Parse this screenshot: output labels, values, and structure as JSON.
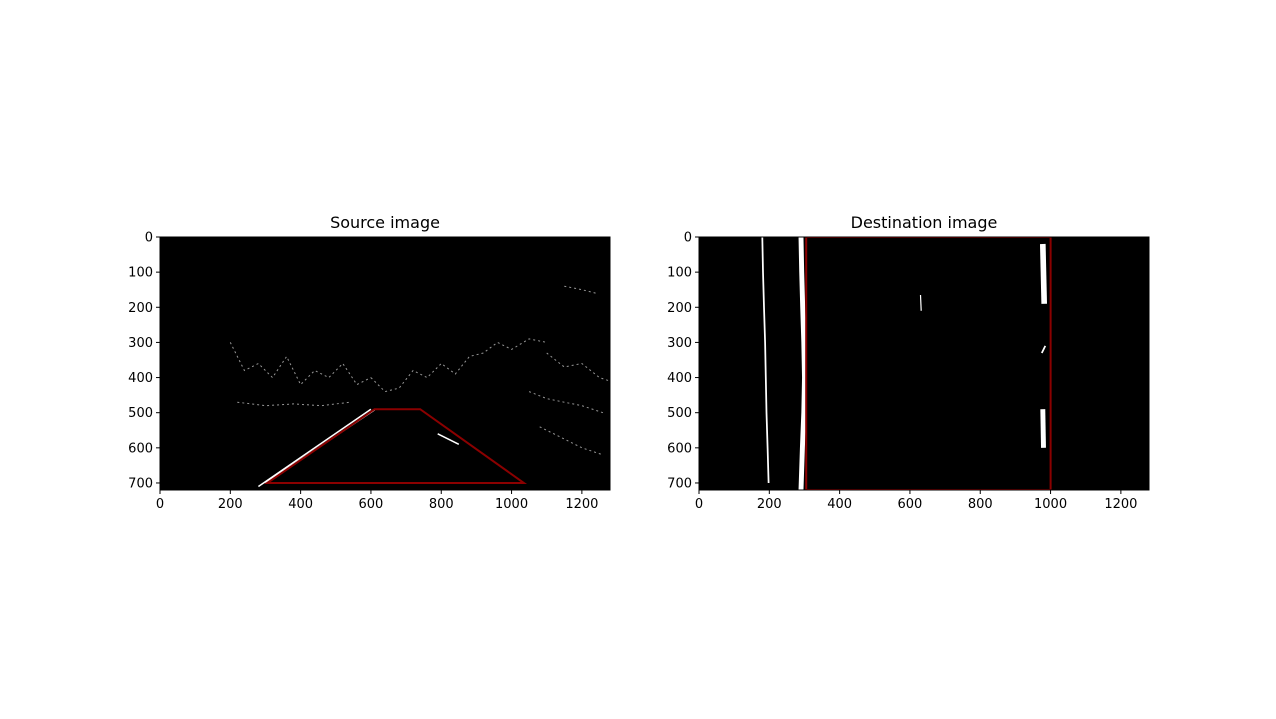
{
  "chart_data": [
    {
      "type": "image",
      "title": "Source image",
      "xlim": [
        0,
        1280
      ],
      "ylim": [
        720,
        0
      ],
      "xticks": [
        0,
        200,
        400,
        600,
        800,
        1000,
        1200
      ],
      "yticks": [
        0,
        100,
        200,
        300,
        400,
        500,
        600,
        700
      ],
      "background": "#000000",
      "overlay_color": "#8b0000",
      "overlay_polygon": [
        [
          305,
          700
        ],
        [
          610,
          490
        ],
        [
          740,
          490
        ],
        [
          1035,
          700
        ]
      ],
      "lane_lines": [
        {
          "x": [
            280,
            600
          ],
          "y": [
            710,
            490
          ]
        },
        {
          "x": [
            300,
            610
          ],
          "y": [
            700,
            492
          ]
        },
        {
          "x": [
            790,
            850
          ],
          "y": [
            560,
            590
          ]
        }
      ],
      "edge_segments": [
        {
          "x": [
            200,
            240,
            280,
            320,
            360,
            400,
            440,
            480,
            520,
            560,
            600
          ],
          "y": [
            300,
            380,
            360,
            400,
            340,
            420,
            380,
            400,
            360,
            420,
            400
          ]
        },
        {
          "x": [
            600,
            640,
            680,
            720,
            760,
            800,
            840,
            880,
            920,
            960,
            1000,
            1050,
            1100
          ],
          "y": [
            400,
            440,
            430,
            380,
            400,
            360,
            390,
            340,
            330,
            300,
            320,
            290,
            300
          ]
        },
        {
          "x": [
            1100,
            1150,
            1200,
            1250,
            1280
          ],
          "y": [
            330,
            370,
            360,
            400,
            410
          ]
        },
        {
          "x": [
            1080,
            1140,
            1200,
            1260
          ],
          "y": [
            540,
            570,
            600,
            620
          ]
        },
        {
          "x": [
            220,
            300,
            380,
            460,
            540
          ],
          "y": [
            470,
            480,
            475,
            480,
            470
          ]
        },
        {
          "x": [
            1150,
            1200,
            1240
          ],
          "y": [
            140,
            150,
            160
          ]
        },
        {
          "x": [
            1050,
            1100,
            1150,
            1200,
            1260
          ],
          "y": [
            440,
            460,
            470,
            480,
            500
          ]
        }
      ]
    },
    {
      "type": "image",
      "title": "Destination image",
      "xlim": [
        0,
        1280
      ],
      "ylim": [
        720,
        0
      ],
      "xticks": [
        0,
        200,
        400,
        600,
        800,
        1000,
        1200
      ],
      "yticks": [
        0,
        100,
        200,
        300,
        400,
        500,
        600,
        700
      ],
      "background": "#000000",
      "overlay_color": "#8b0000",
      "overlay_polygon": [
        [
          305,
          0
        ],
        [
          1000,
          0
        ],
        [
          1000,
          720
        ],
        [
          305,
          720
        ]
      ],
      "lane_lines": [
        {
          "x": [
            290,
            292,
            295,
            298,
            300,
            298,
            294,
            290
          ],
          "y": [
            0,
            100,
            200,
            300,
            400,
            500,
            600,
            720
          ],
          "width": 14
        },
        {
          "x": [
            180,
            182,
            185,
            188,
            190,
            192,
            195,
            198
          ],
          "y": [
            0,
            100,
            200,
            300,
            400,
            500,
            600,
            700
          ],
          "width": 5
        },
        {
          "x": [
            978,
            982
          ],
          "y": [
            20,
            190
          ],
          "width": 16
        },
        {
          "x": [
            978,
            980
          ],
          "y": [
            490,
            600
          ],
          "width": 14
        },
        {
          "x": [
            975,
            985
          ],
          "y": [
            330,
            310
          ],
          "width": 5
        },
        {
          "x": [
            630,
            632
          ],
          "y": [
            165,
            210
          ],
          "width": 3
        }
      ]
    }
  ]
}
